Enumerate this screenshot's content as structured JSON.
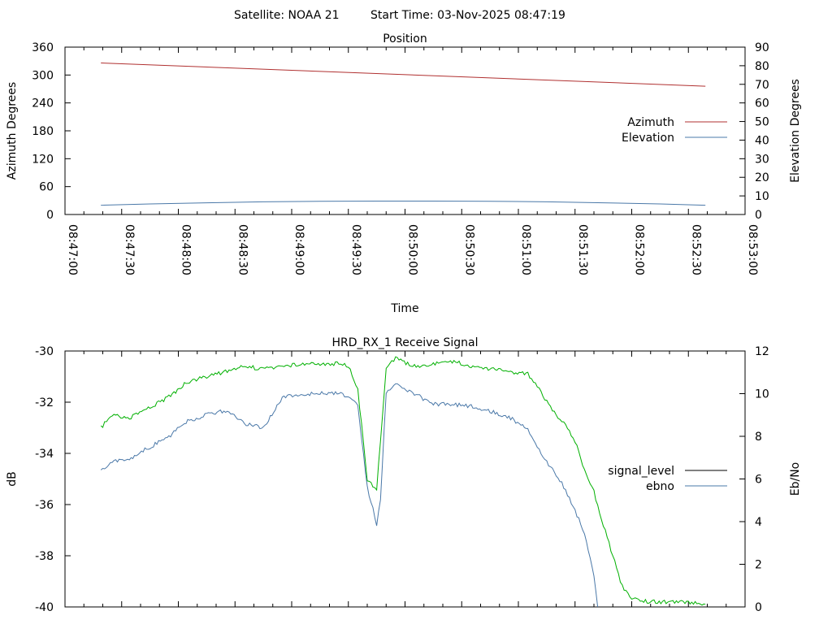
{
  "header": {
    "satellite": "Satellite: NOAA 21",
    "start_time": "Start Time: 03-Nov-2025 08:47:19"
  },
  "colors": {
    "azimuth": "#b03030",
    "elevation": "#4a78a8",
    "signal_level": "#00b000",
    "signal_legend": "#000000",
    "ebno": "#4a78a8"
  },
  "chart_data": [
    {
      "type": "line",
      "title": "Position",
      "xlabel": "Time",
      "ylabel": "Azimuth Degrees",
      "y2label": "Elevation Degrees",
      "xlim": [
        "08:47:00",
        "08:53:00"
      ],
      "ylim": [
        0,
        360
      ],
      "y2lim": [
        0,
        90
      ],
      "x_ticks": [
        "08:47:00",
        "08:47:30",
        "08:48:00",
        "08:48:30",
        "08:49:00",
        "08:49:30",
        "08:50:00",
        "08:50:30",
        "08:51:00",
        "08:51:30",
        "08:52:00",
        "08:52:30",
        "08:53:00"
      ],
      "y_ticks": [
        "0",
        "60",
        "120",
        "180",
        "240",
        "300",
        "360"
      ],
      "y2_ticks": [
        "0",
        "10",
        "20",
        "30",
        "40",
        "50",
        "60",
        "70",
        "80",
        "90"
      ],
      "legend_position": "right",
      "series": [
        {
          "name": "Azimuth",
          "axis": "y",
          "x": [
            "08:47:19",
            "08:52:39"
          ],
          "values": [
            326,
            276
          ]
        },
        {
          "name": "Elevation",
          "axis": "y2",
          "x": [
            "08:47:19",
            "08:47:45",
            "08:48:15",
            "08:48:45",
            "08:49:15",
            "08:49:45",
            "08:50:15",
            "08:50:45",
            "08:51:15",
            "08:51:45",
            "08:52:15",
            "08:52:39"
          ],
          "values": [
            5,
            5.7,
            6.3,
            6.8,
            7.1,
            7.2,
            7.2,
            7.1,
            6.8,
            6.3,
            5.7,
            5
          ]
        }
      ]
    },
    {
      "type": "line",
      "title": "HRD_RX_1 Receive Signal",
      "ylabel": "dB",
      "y2label": "Eb/No",
      "xlim": [
        "08:47:00",
        "08:53:00"
      ],
      "ylim": [
        -40,
        -30
      ],
      "y2lim": [
        0,
        12
      ],
      "y_ticks": [
        "-30",
        "-32",
        "-34",
        "-36",
        "-38",
        "-40"
      ],
      "y2_ticks": [
        "0",
        "2",
        "4",
        "6",
        "8",
        "10",
        "12"
      ],
      "legend_position": "right",
      "series": [
        {
          "name": "signal_level",
          "axis": "y",
          "x": [
            "08:47:19",
            "08:47:25",
            "08:47:35",
            "08:47:45",
            "08:47:55",
            "08:48:05",
            "08:48:15",
            "08:48:25",
            "08:48:35",
            "08:48:45",
            "08:48:55",
            "08:49:05",
            "08:49:15",
            "08:49:25",
            "08:49:30",
            "08:49:35",
            "08:49:40",
            "08:49:45",
            "08:49:47",
            "08:49:50",
            "08:49:55",
            "08:50:05",
            "08:50:15",
            "08:50:25",
            "08:50:35",
            "08:50:45",
            "08:50:55",
            "08:51:05",
            "08:51:10",
            "08:51:15",
            "08:51:20",
            "08:51:25",
            "08:51:30",
            "08:51:35",
            "08:51:40",
            "08:51:45",
            "08:51:50",
            "08:51:55",
            "08:52:00",
            "08:52:10",
            "08:52:20",
            "08:52:30",
            "08:52:39"
          ],
          "values": [
            -33.0,
            -32.5,
            -32.6,
            -32.2,
            -31.8,
            -31.2,
            -31.0,
            -30.8,
            -30.6,
            -30.7,
            -30.6,
            -30.5,
            -30.5,
            -30.5,
            -30.6,
            -31.5,
            -35.0,
            -35.4,
            -33.5,
            -30.6,
            -30.3,
            -30.6,
            -30.5,
            -30.4,
            -30.6,
            -30.7,
            -30.8,
            -30.9,
            -31.4,
            -32.0,
            -32.5,
            -32.9,
            -33.5,
            -34.7,
            -35.5,
            -36.8,
            -38.0,
            -39.2,
            -39.7,
            -39.8,
            -39.8,
            -39.8,
            -39.9
          ]
        },
        {
          "name": "ebno",
          "axis": "y2",
          "x": [
            "08:47:19",
            "08:47:25",
            "08:47:35",
            "08:47:45",
            "08:47:55",
            "08:48:05",
            "08:48:15",
            "08:48:25",
            "08:48:35",
            "08:48:45",
            "08:48:55",
            "08:49:05",
            "08:49:15",
            "08:49:25",
            "08:49:30",
            "08:49:35",
            "08:49:40",
            "08:49:45",
            "08:49:47",
            "08:49:50",
            "08:49:55",
            "08:50:05",
            "08:50:15",
            "08:50:25",
            "08:50:35",
            "08:50:45",
            "08:50:55",
            "08:51:05",
            "08:51:10",
            "08:51:15",
            "08:51:20",
            "08:51:25",
            "08:51:30",
            "08:51:35",
            "08:51:40",
            "08:51:42"
          ],
          "values": [
            6.4,
            6.8,
            7.0,
            7.5,
            8.0,
            8.7,
            9.0,
            9.2,
            8.6,
            8.4,
            9.8,
            10.0,
            10.0,
            10.0,
            9.9,
            9.5,
            5.6,
            3.9,
            5.0,
            10.0,
            10.5,
            10.0,
            9.5,
            9.5,
            9.4,
            9.2,
            8.9,
            8.3,
            7.5,
            6.8,
            6.2,
            5.5,
            4.5,
            3.5,
            1.5,
            0.0
          ]
        }
      ]
    }
  ]
}
